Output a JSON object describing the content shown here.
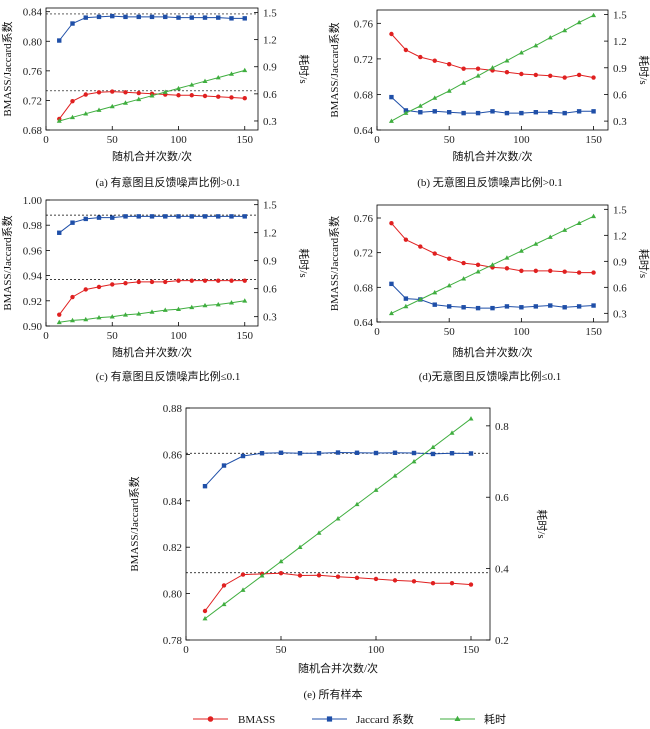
{
  "colors": {
    "bmass": "#e02020",
    "jaccard": "#1f4fa8",
    "time": "#3fae3f"
  },
  "legend": {
    "bmass": "BMASS",
    "jaccard": "Jaccard 系数",
    "time": "耗时"
  },
  "chart_data": [
    {
      "id": "a",
      "type": "line",
      "caption": "(a) 有意图且反馈噪声比例>0.1",
      "xlabel": "随机合并次数/次",
      "ylabel": "BMASS/Jaccard系数",
      "y2label": "耗时/s",
      "x": [
        10,
        20,
        30,
        40,
        50,
        60,
        70,
        80,
        90,
        100,
        110,
        120,
        130,
        140,
        150
      ],
      "xlim": [
        0,
        160
      ],
      "xticks": [
        0,
        50,
        100,
        150
      ],
      "ylim": [
        0.68,
        0.845
      ],
      "yticks": [
        0.68,
        0.72,
        0.76,
        0.8,
        0.84
      ],
      "ytick_labels": [
        "0.68",
        "0.72",
        "0.76",
        "0.80",
        "0.84"
      ],
      "y2lim": [
        0.2,
        1.55
      ],
      "y2ticks": [
        0.3,
        0.6,
        0.9,
        1.2,
        1.5
      ],
      "y2tick_labels": [
        "0.3",
        "0.6",
        "0.9",
        "1.2",
        "1.5"
      ],
      "ref_lines": [
        0.837,
        0.733
      ],
      "series": [
        {
          "name": "BMASS",
          "key": "bmass",
          "axis": "left",
          "values": [
            0.695,
            0.719,
            0.728,
            0.731,
            0.732,
            0.731,
            0.73,
            0.729,
            0.728,
            0.727,
            0.727,
            0.726,
            0.725,
            0.724,
            0.723
          ]
        },
        {
          "name": "Jaccard 系数",
          "key": "jaccard",
          "axis": "left",
          "values": [
            0.801,
            0.824,
            0.832,
            0.833,
            0.834,
            0.833,
            0.833,
            0.833,
            0.833,
            0.832,
            0.832,
            0.832,
            0.832,
            0.831,
            0.831
          ]
        },
        {
          "name": "耗时",
          "key": "time",
          "axis": "right",
          "values": [
            0.3,
            0.34,
            0.38,
            0.42,
            0.46,
            0.5,
            0.54,
            0.58,
            0.62,
            0.66,
            0.7,
            0.74,
            0.78,
            0.82,
            0.86
          ]
        }
      ]
    },
    {
      "id": "b",
      "type": "line",
      "caption": "(b) 无意图且反馈噪声比例>0.1",
      "xlabel": "随机合并次数/次",
      "ylabel": "BMASS/Jaccard系数",
      "y2label": "耗时/s",
      "x": [
        10,
        20,
        30,
        40,
        50,
        60,
        70,
        80,
        90,
        100,
        110,
        120,
        130,
        140,
        150
      ],
      "xlim": [
        0,
        160
      ],
      "xticks": [
        0,
        50,
        100,
        150
      ],
      "ylim": [
        0.64,
        0.775
      ],
      "yticks": [
        0.64,
        0.68,
        0.72,
        0.76
      ],
      "ytick_labels": [
        "0.64",
        "0.68",
        "0.72",
        "0.76"
      ],
      "y2lim": [
        0.2,
        1.55
      ],
      "y2ticks": [
        0.3,
        0.6,
        0.9,
        1.2,
        1.5
      ],
      "y2tick_labels": [
        "0.3",
        "0.6",
        "0.9",
        "1.2",
        "1.5"
      ],
      "ref_lines": [],
      "series": [
        {
          "name": "BMASS",
          "key": "bmass",
          "axis": "left",
          "values": [
            0.748,
            0.73,
            0.722,
            0.718,
            0.714,
            0.709,
            0.709,
            0.707,
            0.705,
            0.703,
            0.702,
            0.701,
            0.699,
            0.702,
            0.699
          ]
        },
        {
          "name": "Jaccard 系数",
          "key": "jaccard",
          "axis": "left",
          "values": [
            0.677,
            0.662,
            0.66,
            0.661,
            0.66,
            0.659,
            0.659,
            0.661,
            0.659,
            0.659,
            0.66,
            0.66,
            0.659,
            0.661,
            0.661
          ]
        },
        {
          "name": "耗时",
          "key": "time",
          "axis": "right",
          "values": [
            0.3,
            0.39,
            0.47,
            0.56,
            0.64,
            0.73,
            0.81,
            0.9,
            0.98,
            1.07,
            1.15,
            1.24,
            1.32,
            1.41,
            1.49
          ]
        }
      ]
    },
    {
      "id": "c",
      "type": "line",
      "caption": "(c) 有意图且反馈噪声比例≤0.1",
      "xlabel": "随机合并次数/次",
      "ylabel": "BMASS/Jaccard系数",
      "y2label": "耗时/s",
      "x": [
        10,
        20,
        30,
        40,
        50,
        60,
        70,
        80,
        90,
        100,
        110,
        120,
        130,
        140,
        150
      ],
      "xlim": [
        0,
        160
      ],
      "xticks": [
        0,
        50,
        100,
        150
      ],
      "ylim": [
        0.9,
        1.0
      ],
      "yticks": [
        0.9,
        0.92,
        0.94,
        0.96,
        0.98,
        1.0
      ],
      "ytick_labels": [
        "0.90",
        "0.92",
        "0.94",
        "0.96",
        "0.98",
        "1.00"
      ],
      "y2lim": [
        0.2,
        1.55
      ],
      "y2ticks": [
        0.3,
        0.6,
        0.9,
        1.2,
        1.5
      ],
      "y2tick_labels": [
        "0.3",
        "0.6",
        "0.9",
        "1.2",
        "1.5"
      ],
      "ref_lines": [
        0.988,
        0.937
      ],
      "series": [
        {
          "name": "BMASS",
          "key": "bmass",
          "axis": "left",
          "values": [
            0.909,
            0.923,
            0.929,
            0.931,
            0.933,
            0.934,
            0.935,
            0.935,
            0.935,
            0.936,
            0.936,
            0.936,
            0.936,
            0.936,
            0.936
          ]
        },
        {
          "name": "Jaccard 系数",
          "key": "jaccard",
          "axis": "left",
          "values": [
            0.974,
            0.982,
            0.985,
            0.986,
            0.986,
            0.987,
            0.987,
            0.987,
            0.987,
            0.987,
            0.987,
            0.987,
            0.987,
            0.987,
            0.987
          ]
        },
        {
          "name": "耗时",
          "key": "time",
          "axis": "right",
          "values": [
            0.24,
            0.26,
            0.27,
            0.29,
            0.3,
            0.32,
            0.33,
            0.35,
            0.37,
            0.38,
            0.4,
            0.42,
            0.43,
            0.45,
            0.47
          ]
        }
      ]
    },
    {
      "id": "d",
      "type": "line",
      "caption": "(d)无意图且反馈噪声比例≤0.1",
      "xlabel": "随机合并次数/次",
      "ylabel": "BMASS/Jaccard系数",
      "y2label": "耗时/s",
      "x": [
        10,
        20,
        30,
        40,
        50,
        60,
        70,
        80,
        90,
        100,
        110,
        120,
        130,
        140,
        150
      ],
      "xlim": [
        0,
        160
      ],
      "xticks": [
        0,
        50,
        100,
        150
      ],
      "ylim": [
        0.64,
        0.775
      ],
      "yticks": [
        0.64,
        0.68,
        0.72,
        0.76
      ],
      "ytick_labels": [
        "0.64",
        "0.68",
        "0.72",
        "0.76"
      ],
      "y2lim": [
        0.2,
        1.55
      ],
      "y2ticks": [
        0.3,
        0.6,
        0.9,
        1.2,
        1.5
      ],
      "y2tick_labels": [
        "0.3",
        "0.6",
        "0.9",
        "1.2",
        "1.5"
      ],
      "ref_lines": [],
      "series": [
        {
          "name": "BMASS",
          "key": "bmass",
          "axis": "left",
          "values": [
            0.754,
            0.735,
            0.727,
            0.719,
            0.713,
            0.708,
            0.706,
            0.703,
            0.702,
            0.699,
            0.699,
            0.699,
            0.698,
            0.697,
            0.697
          ]
        },
        {
          "name": "Jaccard 系数",
          "key": "jaccard",
          "axis": "left",
          "values": [
            0.684,
            0.667,
            0.666,
            0.66,
            0.658,
            0.657,
            0.656,
            0.656,
            0.658,
            0.657,
            0.658,
            0.659,
            0.657,
            0.658,
            0.659
          ]
        },
        {
          "name": "耗时",
          "key": "time",
          "axis": "right",
          "values": [
            0.3,
            0.38,
            0.46,
            0.54,
            0.62,
            0.7,
            0.78,
            0.86,
            0.94,
            1.02,
            1.1,
            1.18,
            1.26,
            1.34,
            1.42
          ]
        }
      ]
    },
    {
      "id": "e",
      "type": "line",
      "caption": "(e) 所有样本",
      "xlabel": "随机合并次数/次",
      "ylabel": "BMASS/Jaccard系数",
      "y2label": "耗时/s",
      "x": [
        10,
        20,
        30,
        40,
        50,
        60,
        70,
        80,
        90,
        100,
        110,
        120,
        130,
        140,
        150
      ],
      "xlim": [
        0,
        160
      ],
      "xticks": [
        0,
        50,
        100,
        150
      ],
      "ylim": [
        0.78,
        0.88
      ],
      "yticks": [
        0.78,
        0.8,
        0.82,
        0.84,
        0.86,
        0.88
      ],
      "ytick_labels": [
        "0.78",
        "0.80",
        "0.82",
        "0.84",
        "0.86",
        "0.88"
      ],
      "y2lim": [
        0.2,
        0.85
      ],
      "y2ticks": [
        0.2,
        0.4,
        0.6,
        0.8
      ],
      "y2tick_labels": [
        "0.2",
        "0.4",
        "0.6",
        "0.8"
      ],
      "ref_lines": [
        0.8605,
        0.809
      ],
      "series": [
        {
          "name": "BMASS",
          "key": "bmass",
          "axis": "left",
          "values": [
            0.7925,
            0.8035,
            0.8082,
            0.8085,
            0.8088,
            0.8078,
            0.8079,
            0.8073,
            0.8068,
            0.8063,
            0.8057,
            0.8053,
            0.8045,
            0.8045,
            0.8039
          ]
        },
        {
          "name": "Jaccard 系数",
          "key": "jaccard",
          "axis": "left",
          "values": [
            0.8463,
            0.8552,
            0.8593,
            0.8605,
            0.8607,
            0.8605,
            0.8605,
            0.8608,
            0.8607,
            0.8606,
            0.8607,
            0.8606,
            0.8602,
            0.8605,
            0.8604
          ]
        },
        {
          "name": "耗时",
          "key": "time",
          "axis": "right",
          "values": [
            0.26,
            0.3,
            0.34,
            0.38,
            0.42,
            0.46,
            0.5,
            0.54,
            0.58,
            0.62,
            0.66,
            0.7,
            0.74,
            0.78,
            0.82
          ]
        }
      ]
    }
  ]
}
